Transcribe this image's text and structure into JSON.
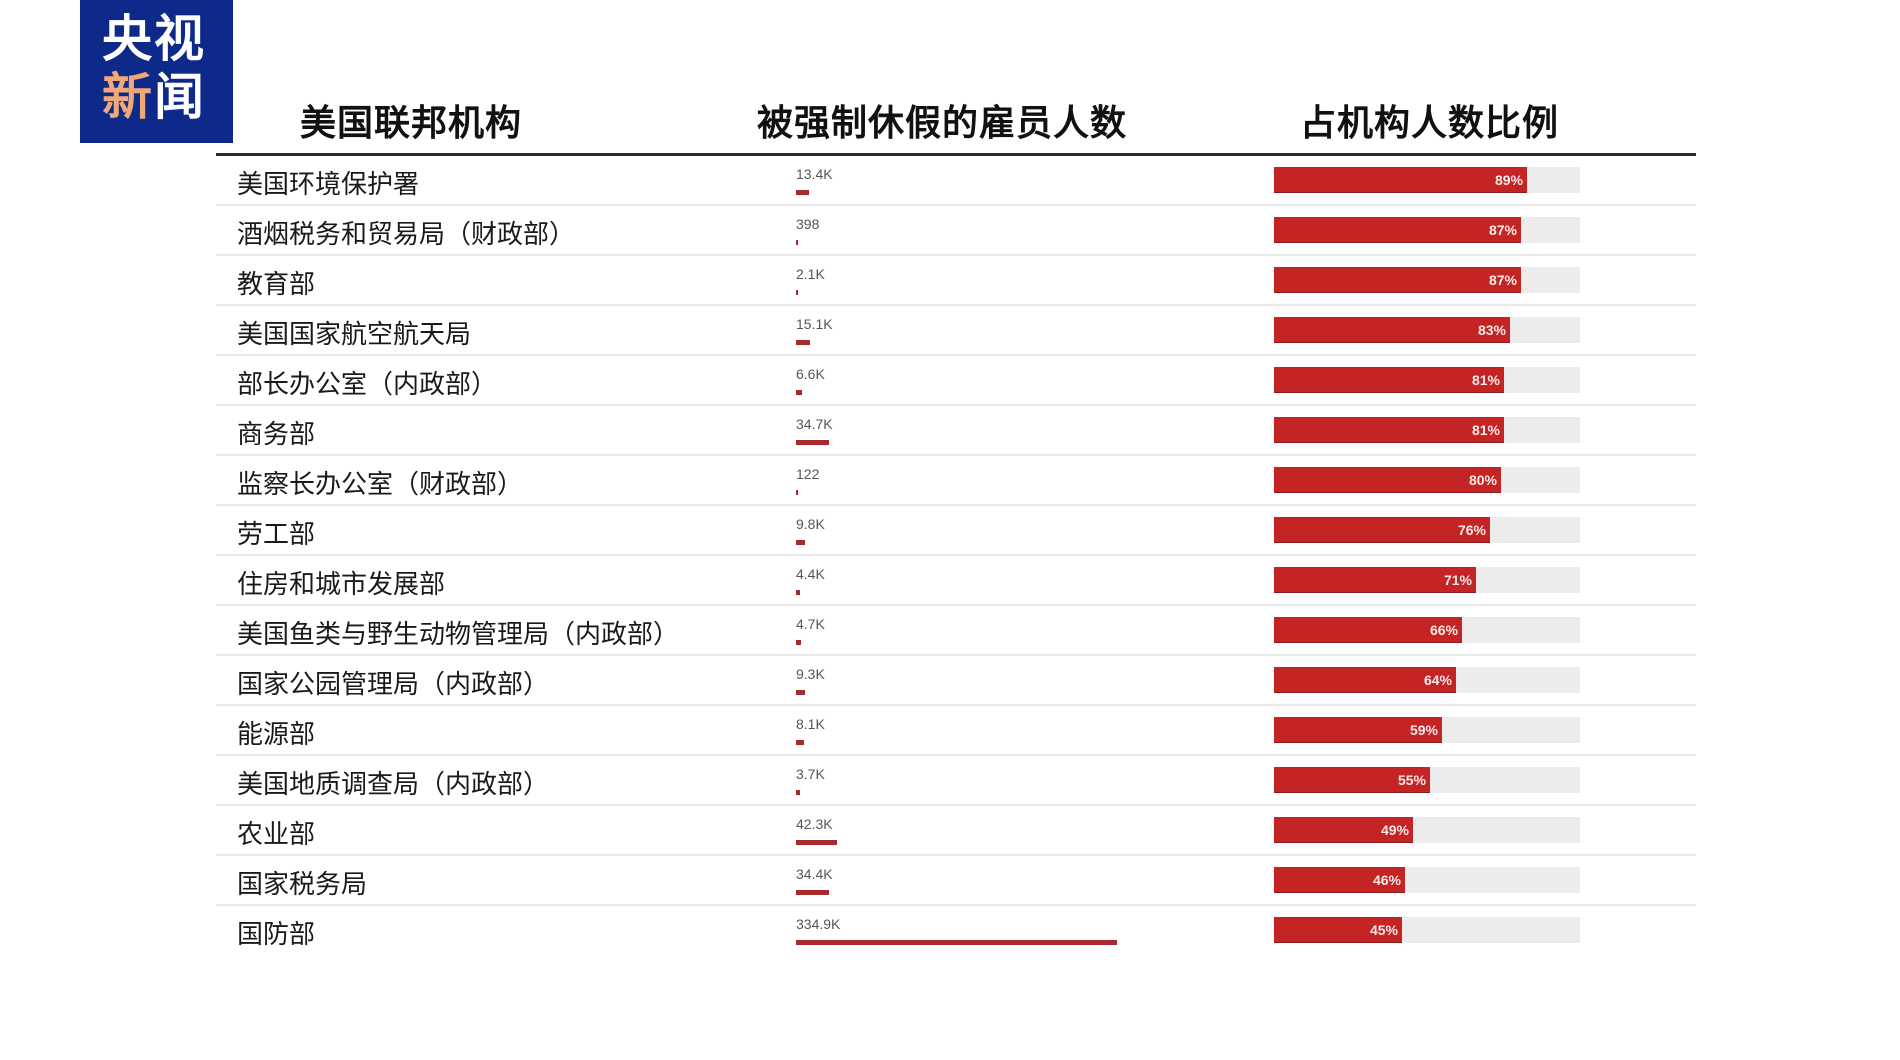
{
  "logo": {
    "line1": "央视",
    "line2_accent": "新",
    "line2_rest": "闻"
  },
  "headers": {
    "agency": "美国联邦机构",
    "furloughed": "被强制休假的雇员人数",
    "share": "占机构人数比例"
  },
  "colors": {
    "bar_red": "#c42424",
    "mini_bar": "#a8282c",
    "track": "#ececec",
    "logo_blue": "#0d2a8a",
    "logo_accent": "#f0a878"
  },
  "rows": [
    {
      "agency": "美国环境保护署",
      "count": "13.4K",
      "count_value": 13400,
      "pct": "89%",
      "pct_value": 89
    },
    {
      "agency": "酒烟税务和贸易局（财政部）",
      "count": "398",
      "count_value": 398,
      "pct": "87%",
      "pct_value": 87
    },
    {
      "agency": "教育部",
      "count": "2.1K",
      "count_value": 2100,
      "pct": "87%",
      "pct_value": 87
    },
    {
      "agency": "美国国家航空航天局",
      "count": "15.1K",
      "count_value": 15100,
      "pct": "83%",
      "pct_value": 83
    },
    {
      "agency": "部长办公室（内政部）",
      "count": "6.6K",
      "count_value": 6600,
      "pct": "81%",
      "pct_value": 81
    },
    {
      "agency": "商务部",
      "count": "34.7K",
      "count_value": 34700,
      "pct": "81%",
      "pct_value": 81
    },
    {
      "agency": "监察长办公室（财政部）",
      "count": "122",
      "count_value": 122,
      "pct": "80%",
      "pct_value": 80
    },
    {
      "agency": "劳工部",
      "count": "9.8K",
      "count_value": 9800,
      "pct": "76%",
      "pct_value": 76
    },
    {
      "agency": "住房和城市发展部",
      "count": "4.4K",
      "count_value": 4400,
      "pct": "71%",
      "pct_value": 71
    },
    {
      "agency": "美国鱼类与野生动物管理局（内政部）",
      "count": "4.7K",
      "count_value": 4700,
      "pct": "66%",
      "pct_value": 66
    },
    {
      "agency": "国家公园管理局（内政部）",
      "count": "9.3K",
      "count_value": 9300,
      "pct": "64%",
      "pct_value": 64
    },
    {
      "agency": "能源部",
      "count": "8.1K",
      "count_value": 8100,
      "pct": "59%",
      "pct_value": 59
    },
    {
      "agency": "美国地质调查局（内政部）",
      "count": "3.7K",
      "count_value": 3700,
      "pct": "55%",
      "pct_value": 55
    },
    {
      "agency": "农业部",
      "count": "42.3K",
      "count_value": 42300,
      "pct": "49%",
      "pct_value": 49
    },
    {
      "agency": "国家税务局",
      "count": "34.4K",
      "count_value": 34400,
      "pct": "46%",
      "pct_value": 46
    },
    {
      "agency": "国防部",
      "count": "334.9K",
      "count_value": 334900,
      "pct": "45%",
      "pct_value": 45
    }
  ],
  "chart_data": {
    "type": "table",
    "title": "",
    "columns": [
      "美国联邦机构",
      "被强制休假的雇员人数",
      "占机构人数比例"
    ],
    "categories": [
      "美国环境保护署",
      "酒烟税务和贸易局（财政部）",
      "教育部",
      "美国国家航空航天局",
      "部长办公室（内政部）",
      "商务部",
      "监察长办公室（财政部）",
      "劳工部",
      "住房和城市发展部",
      "美国鱼类与野生动物管理局（内政部）",
      "国家公园管理局（内政部）",
      "能源部",
      "美国地质调查局（内政部）",
      "农业部",
      "国家税务局",
      "国防部"
    ],
    "series": [
      {
        "name": "被强制休假的雇员人数",
        "type": "bar",
        "values": [
          13400,
          398,
          2100,
          15100,
          6600,
          34700,
          122,
          9800,
          4400,
          4700,
          9300,
          8100,
          3700,
          42300,
          34400,
          334900
        ],
        "labels": [
          "13.4K",
          "398",
          "2.1K",
          "15.1K",
          "6.6K",
          "34.7K",
          "122",
          "9.8K",
          "4.4K",
          "4.7K",
          "9.3K",
          "8.1K",
          "3.7K",
          "42.3K",
          "34.4K",
          "334.9K"
        ]
      },
      {
        "name": "占机构人数比例",
        "type": "bar",
        "unit": "%",
        "values": [
          89,
          87,
          87,
          83,
          81,
          81,
          80,
          76,
          71,
          66,
          64,
          59,
          55,
          49,
          46,
          45
        ],
        "ylim": [
          0,
          100
        ]
      }
    ],
    "xlabel": "",
    "ylabel": "",
    "legend": "none",
    "grid": false
  }
}
